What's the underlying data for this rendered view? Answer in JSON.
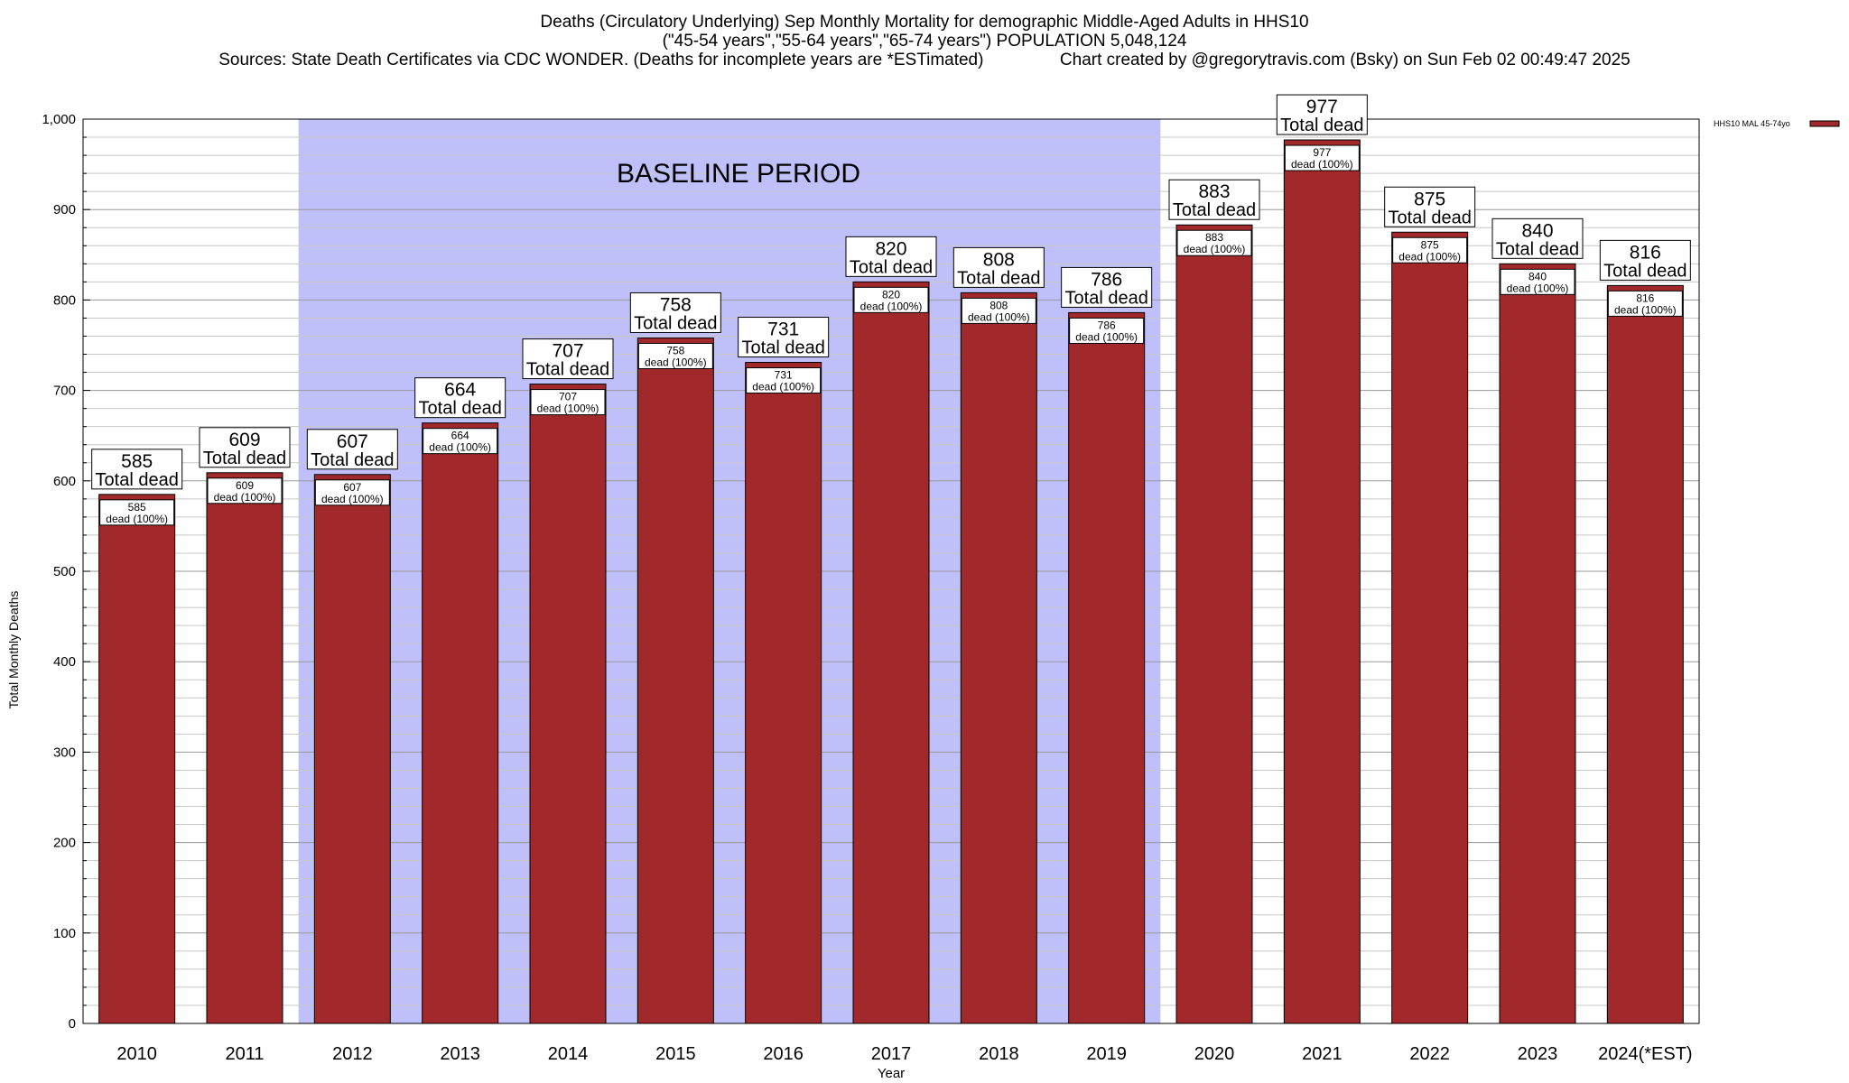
{
  "chart_data": {
    "type": "bar",
    "title_lines": [
      "Deaths (Circulatory Underlying) Sep Monthly Mortality for demographic Middle-Aged Adults in HHS10",
      "(\"45-54 years\",\"55-64 years\",\"65-74 years\") POPULATION 5,048,124",
      "Sources: State Death Certificates via CDC WONDER. (Deaths for incomplete years are *ESTimated)                Chart created by @gregorytravis.com (Bsky) on Sun Feb 02 00:49:47 2025"
    ],
    "xlabel": "Year",
    "ylabel": "Total Monthly Deaths",
    "ylim": [
      0,
      1000
    ],
    "yticks": [
      0,
      100,
      200,
      300,
      400,
      500,
      600,
      700,
      800,
      900,
      1000
    ],
    "ytick_labels": [
      "0",
      "100",
      "200",
      "300",
      "400",
      "500",
      "600",
      "700",
      "800",
      "900",
      "1,000"
    ],
    "grid": "horizontal",
    "legend": {
      "position": "top-right",
      "entries": [
        "HHS10 MAL 45-74yo"
      ]
    },
    "categories": [
      "2010",
      "2011",
      "2012",
      "2013",
      "2014",
      "2015",
      "2016",
      "2017",
      "2018",
      "2019",
      "2020",
      "2021",
      "2022",
      "2023",
      "2024(*EST)"
    ],
    "series": [
      {
        "name": "HHS10 MAL 45-74yo",
        "color": "#a1282b",
        "values": [
          585,
          609,
          607,
          664,
          707,
          758,
          731,
          820,
          808,
          786,
          883,
          977,
          875,
          840,
          816
        ]
      }
    ],
    "label_top_suffix": "Total dead",
    "label_inner_suffix": "dead (100%)",
    "baseline_period": {
      "label": "BASELINE PERIOD",
      "from": "2012",
      "to": "2019",
      "color": "#bfbffa"
    }
  }
}
